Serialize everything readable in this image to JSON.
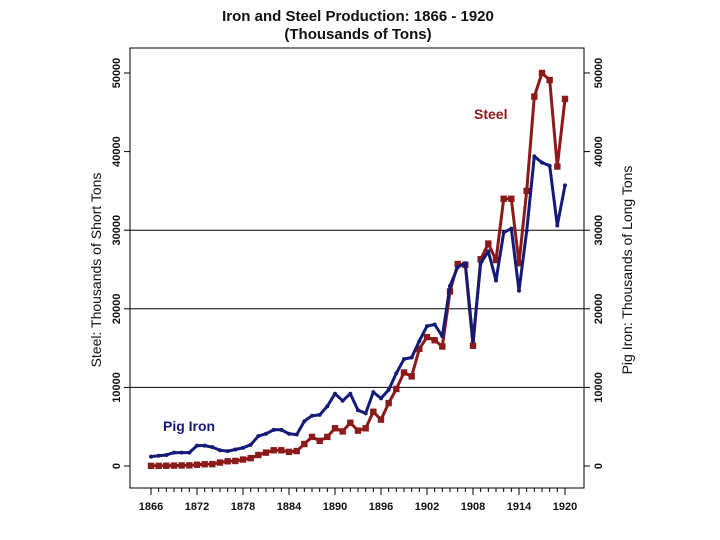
{
  "chart_data": {
    "type": "line",
    "title": "Iron and Steel Production: 1866 - 1920",
    "subtitle": "(Thousands of Tons)",
    "ylabel_left": "Steel: Thousands of Short Tons",
    "ylabel_right": "Pig Iron: Thousands of Long Tons",
    "xlim": [
      1865,
      1921
    ],
    "ylim": [
      0,
      50000
    ],
    "x_ticks": [
      1866,
      1872,
      1878,
      1884,
      1890,
      1896,
      1902,
      1908,
      1914,
      1920
    ],
    "y_ticks_left": [
      0,
      10000,
      20000,
      30000,
      40000,
      50000
    ],
    "y_ticks_right": [
      0,
      10000,
      20000,
      30000,
      40000,
      50000
    ],
    "gridlines_y": [
      10000,
      20000,
      30000
    ],
    "series": [
      {
        "name": "Steel",
        "color": "#8b1a1a",
        "marker": "square",
        "x": [
          1866,
          1867,
          1868,
          1869,
          1870,
          1871,
          1872,
          1873,
          1874,
          1875,
          1876,
          1877,
          1878,
          1879,
          1880,
          1881,
          1882,
          1883,
          1884,
          1885,
          1886,
          1887,
          1888,
          1889,
          1890,
          1891,
          1892,
          1893,
          1894,
          1895,
          1896,
          1897,
          1898,
          1899,
          1900,
          1901,
          1902,
          1903,
          1904,
          1905,
          1906,
          1907,
          1908,
          1909,
          1910,
          1911,
          1912,
          1913,
          1914,
          1915,
          1916,
          1917,
          1918,
          1919,
          1920
        ],
        "values": [
          20,
          20,
          30,
          50,
          70,
          80,
          160,
          220,
          240,
          440,
          600,
          640,
          820,
          1000,
          1400,
          1700,
          2000,
          2000,
          1800,
          1900,
          2800,
          3700,
          3200,
          3700,
          4800,
          4400,
          5500,
          4500,
          4800,
          6900,
          5900,
          8000,
          9800,
          11900,
          11400,
          14900,
          16400,
          16000,
          15200,
          22200,
          25700,
          25600,
          15300,
          26300,
          28300,
          26200,
          34000,
          34000,
          25800,
          35000,
          47000,
          50000,
          49100,
          38100,
          46700
        ]
      },
      {
        "name": "Pig Iron",
        "color": "#141a78",
        "marker": "dot",
        "x": [
          1866,
          1867,
          1868,
          1869,
          1870,
          1871,
          1872,
          1873,
          1874,
          1875,
          1876,
          1877,
          1878,
          1879,
          1880,
          1881,
          1882,
          1883,
          1884,
          1885,
          1886,
          1887,
          1888,
          1889,
          1890,
          1891,
          1892,
          1893,
          1894,
          1895,
          1896,
          1897,
          1898,
          1899,
          1900,
          1901,
          1902,
          1903,
          1904,
          1905,
          1906,
          1907,
          1908,
          1909,
          1910,
          1911,
          1912,
          1913,
          1914,
          1915,
          1916,
          1917,
          1918,
          1919,
          1920
        ],
        "values": [
          1200,
          1300,
          1400,
          1700,
          1700,
          1700,
          2600,
          2600,
          2400,
          2000,
          1900,
          2100,
          2300,
          2700,
          3800,
          4100,
          4600,
          4600,
          4100,
          4000,
          5700,
          6400,
          6500,
          7600,
          9200,
          8300,
          9200,
          7100,
          6700,
          9400,
          8600,
          9700,
          11800,
          13600,
          13800,
          15900,
          17800,
          18000,
          16500,
          22900,
          25300,
          25800,
          15900,
          25800,
          27300,
          23600,
          29700,
          30200,
          22300,
          29900,
          39400,
          38600,
          38200,
          30600,
          35700
        ]
      }
    ]
  }
}
